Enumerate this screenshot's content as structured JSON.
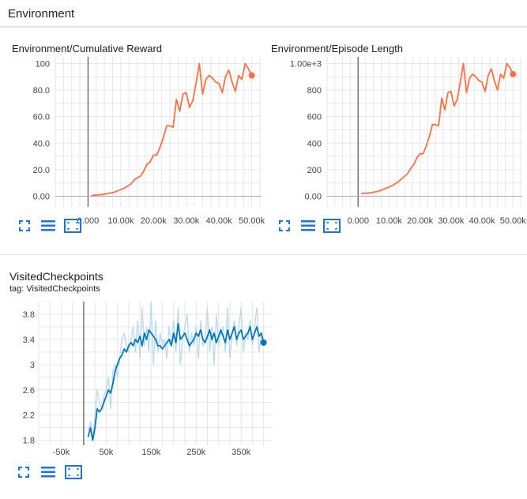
{
  "section": {
    "title": "Environment"
  },
  "colors": {
    "orange": "#ff7043",
    "orange_smoothed": "#ff7043",
    "blue": "#0077bb",
    "blue_raw": "#b9d9ec",
    "grid": "#e0e0e0",
    "axis": "#333333"
  },
  "icons": [
    "fullscreen-icon",
    "list-icon",
    "fit-domain-icon"
  ],
  "chart_data": [
    {
      "type": "line",
      "title": "Environment/Cumulative Reward",
      "xlim": [
        -10000,
        53000
      ],
      "ylim": [
        -8,
        105
      ],
      "xticks": [
        "0.000",
        "10.00k",
        "20.00k",
        "30.00k",
        "40.00k",
        "50.00k"
      ],
      "xtick_values": [
        0,
        10000,
        20000,
        30000,
        40000,
        50000
      ],
      "yticks": [
        "0.00",
        "20.0",
        "40.0",
        "60.0",
        "80.0",
        "100"
      ],
      "ytick_values": [
        0,
        20,
        40,
        60,
        80,
        100
      ],
      "grid": true,
      "series": [
        {
          "color": "#ff7043",
          "x": [
            1000,
            2000,
            3000,
            4000,
            5000,
            6000,
            7000,
            8000,
            9000,
            10000,
            11000,
            12000,
            13000,
            14000,
            15000,
            16000,
            17000,
            18000,
            19000,
            20000,
            21000,
            22000,
            23000,
            24000,
            25000,
            26000,
            27000,
            28000,
            29000,
            30000,
            31000,
            32000,
            33000,
            34000,
            35000,
            36000,
            37000,
            38000,
            39000,
            40000,
            41000,
            42000,
            43000,
            44000,
            45000,
            46000,
            47000,
            48000,
            49000,
            50000
          ],
          "y": [
            0.5,
            0.8,
            1.0,
            1.2,
            1.5,
            2.0,
            2.5,
            3.0,
            4.0,
            5.0,
            6.0,
            7.5,
            9.0,
            12,
            14,
            15,
            19,
            24,
            26,
            31,
            31,
            37,
            44,
            53,
            53,
            52,
            73,
            64,
            77,
            78,
            67,
            72,
            85,
            100,
            77,
            88,
            91,
            89,
            86,
            85,
            78,
            90,
            95,
            86,
            79,
            91,
            88,
            100,
            96,
            91
          ]
        }
      ]
    },
    {
      "type": "line",
      "title": "Environment/Episode Length",
      "xlim": [
        -10000,
        53000
      ],
      "ylim": [
        -80,
        1050
      ],
      "xticks": [
        "0.000",
        "10.00k",
        "20.00k",
        "30.00k",
        "40.00k",
        "50.00k"
      ],
      "xtick_values": [
        0,
        10000,
        20000,
        30000,
        40000,
        50000
      ],
      "yticks": [
        "0.00",
        "200",
        "400",
        "600",
        "800",
        "1.00e+3"
      ],
      "ytick_values": [
        0,
        200,
        400,
        600,
        800,
        1000
      ],
      "grid": true,
      "series": [
        {
          "color": "#ff7043",
          "x": [
            1000,
            2000,
            3000,
            4000,
            5000,
            6000,
            7000,
            8000,
            9000,
            10000,
            11000,
            12000,
            13000,
            14000,
            15000,
            16000,
            17000,
            18000,
            19000,
            20000,
            21000,
            22000,
            23000,
            24000,
            25000,
            26000,
            27000,
            28000,
            29000,
            30000,
            31000,
            32000,
            33000,
            34000,
            35000,
            36000,
            37000,
            38000,
            39000,
            40000,
            41000,
            42000,
            43000,
            44000,
            45000,
            46000,
            47000,
            48000,
            49000,
            50000
          ],
          "y": [
            20,
            22,
            24,
            26,
            30,
            35,
            42,
            50,
            60,
            70,
            80,
            95,
            110,
            130,
            150,
            170,
            210,
            240,
            290,
            320,
            320,
            380,
            450,
            540,
            540,
            530,
            740,
            650,
            780,
            790,
            680,
            730,
            860,
            1000,
            780,
            890,
            920,
            900,
            870,
            860,
            790,
            910,
            960,
            870,
            800,
            920,
            890,
            1000,
            970,
            920
          ]
        }
      ]
    },
    {
      "type": "line",
      "title": "VisitedCheckpoints",
      "tag_label": "tag: VisitedCheckpoints",
      "xlim": [
        -100000,
        420000
      ],
      "ylim": [
        1.72,
        4.0
      ],
      "xticks": [
        "-50k",
        "50k",
        "150k",
        "250k",
        "350k"
      ],
      "xtick_values": [
        -50000,
        50000,
        150000,
        250000,
        350000
      ],
      "yticks": [
        "1.8",
        "2.2",
        "2.6",
        "3",
        "3.4",
        "3.8"
      ],
      "ytick_values": [
        1.8,
        2.2,
        2.6,
        3.0,
        3.4,
        3.8
      ],
      "grid": true,
      "series": [
        {
          "name": "raw",
          "color": "#b9d9ec",
          "x": [
            10000,
            15000,
            20000,
            25000,
            30000,
            35000,
            40000,
            45000,
            50000,
            55000,
            60000,
            65000,
            70000,
            75000,
            80000,
            85000,
            90000,
            95000,
            100000,
            105000,
            110000,
            115000,
            120000,
            125000,
            130000,
            135000,
            140000,
            145000,
            150000,
            155000,
            160000,
            165000,
            170000,
            175000,
            180000,
            185000,
            190000,
            195000,
            200000,
            205000,
            210000,
            215000,
            220000,
            225000,
            230000,
            235000,
            240000,
            245000,
            250000,
            255000,
            260000,
            265000,
            270000,
            275000,
            280000,
            285000,
            290000,
            295000,
            300000,
            305000,
            310000,
            315000,
            320000,
            325000,
            330000,
            335000,
            340000,
            345000,
            350000,
            355000,
            360000,
            365000,
            370000,
            375000,
            380000,
            385000,
            390000,
            395000,
            400000
          ],
          "y": [
            1.95,
            2.1,
            1.8,
            2.2,
            2.6,
            2.4,
            2.3,
            2.5,
            2.6,
            2.8,
            2.3,
            2.9,
            3.0,
            2.8,
            3.1,
            3.4,
            3.5,
            3.3,
            3.2,
            3.4,
            3.6,
            3.2,
            3.7,
            3.1,
            3.9,
            3.3,
            3.6,
            3.2,
            4.0,
            3.0,
            3.7,
            3.2,
            3.5,
            3.3,
            3.4,
            3.1,
            3.6,
            3.3,
            3.7,
            3.2,
            3.9,
            3.0,
            3.4,
            3.6,
            3.8,
            3.2,
            3.5,
            3.3,
            3.6,
            3.1,
            3.7,
            3.3,
            3.4,
            3.9,
            3.2,
            3.6,
            3.0,
            3.8,
            3.3,
            3.5,
            3.6,
            3.2,
            3.9,
            3.1,
            3.5,
            3.7,
            3.3,
            3.6,
            3.9,
            3.2,
            3.5,
            3.4,
            3.7,
            3.3,
            3.6,
            3.9,
            3.2,
            3.5,
            3.35
          ]
        },
        {
          "name": "smoothed",
          "color": "#0077bb",
          "x": [
            10000,
            15000,
            20000,
            25000,
            30000,
            35000,
            40000,
            45000,
            50000,
            55000,
            60000,
            65000,
            70000,
            75000,
            80000,
            85000,
            90000,
            95000,
            100000,
            105000,
            110000,
            115000,
            120000,
            125000,
            130000,
            135000,
            140000,
            145000,
            150000,
            155000,
            160000,
            165000,
            170000,
            175000,
            180000,
            185000,
            190000,
            195000,
            200000,
            205000,
            210000,
            215000,
            220000,
            225000,
            230000,
            235000,
            240000,
            245000,
            250000,
            255000,
            260000,
            265000,
            270000,
            275000,
            280000,
            285000,
            290000,
            295000,
            300000,
            305000,
            310000,
            315000,
            320000,
            325000,
            330000,
            335000,
            340000,
            345000,
            350000,
            355000,
            360000,
            365000,
            370000,
            375000,
            380000,
            385000,
            390000,
            395000,
            400000
          ],
          "y": [
            1.85,
            2.0,
            1.8,
            2.0,
            2.3,
            2.25,
            2.3,
            2.4,
            2.5,
            2.6,
            2.55,
            2.7,
            2.9,
            3.0,
            3.1,
            3.15,
            3.25,
            3.2,
            3.3,
            3.35,
            3.3,
            3.4,
            3.35,
            3.45,
            3.3,
            3.5,
            3.4,
            3.55,
            3.5,
            3.45,
            3.4,
            3.3,
            3.3,
            3.25,
            3.3,
            3.35,
            3.4,
            3.3,
            3.5,
            3.35,
            3.65,
            3.4,
            3.45,
            3.5,
            3.4,
            3.3,
            3.35,
            3.4,
            3.5,
            3.45,
            3.55,
            3.4,
            3.35,
            3.45,
            3.55,
            3.4,
            3.5,
            3.35,
            3.45,
            3.55,
            3.45,
            3.35,
            3.55,
            3.4,
            3.5,
            3.6,
            3.4,
            3.5,
            3.55,
            3.4,
            3.45,
            3.5,
            3.6,
            3.4,
            3.5,
            3.6,
            3.45,
            3.5,
            3.35
          ]
        }
      ]
    }
  ]
}
